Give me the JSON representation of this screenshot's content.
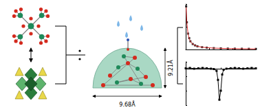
{
  "diagram": {
    "height_label": "9.21Å",
    "width_label": "9.68Å"
  },
  "chart_data": [
    {
      "type": "scatter",
      "x": [
        2,
        5,
        10,
        15,
        20,
        30,
        40,
        50,
        70,
        90,
        120,
        150,
        180,
        210,
        240,
        270,
        300
      ],
      "series": [
        {
          "type": "scatter",
          "marker": "square",
          "color": "#000000",
          "values": [
            0.95,
            0.6,
            0.35,
            0.25,
            0.18,
            0.12,
            0.09,
            0.07,
            0.05,
            0.04,
            0.03,
            0.025,
            0.02,
            0.018,
            0.016,
            0.014,
            0.012
          ]
        },
        {
          "type": "line",
          "line_style": "solid",
          "color": "#d62728",
          "values": [
            0.93,
            0.59,
            0.34,
            0.24,
            0.18,
            0.12,
            0.09,
            0.07,
            0.05,
            0.04,
            0.03,
            0.025,
            0.02,
            0.018,
            0.016,
            0.014,
            0.012
          ]
        }
      ],
      "xlim": [
        0,
        300
      ],
      "xticks": [
        0,
        100,
        200,
        300
      ],
      "ylim": [
        0,
        1
      ],
      "yticks": [
        0,
        0.5,
        1
      ],
      "tick_labels": false
    },
    {
      "type": "line",
      "x": [
        0,
        6,
        12,
        18,
        24,
        30,
        36,
        40,
        44,
        46,
        48,
        50,
        52,
        54,
        58,
        64,
        70,
        76,
        82,
        88,
        94,
        100
      ],
      "series": [
        {
          "type": "line",
          "marker": "square",
          "color": "#000000",
          "values": [
            0.02,
            0.03,
            0.01,
            0.02,
            0.03,
            0.02,
            0.01,
            0.0,
            -0.05,
            -0.3,
            -0.85,
            -0.6,
            -0.15,
            -0.02,
            0.01,
            0.02,
            0.03,
            0.02,
            0.01,
            0.02,
            0.03,
            0.02
          ]
        }
      ],
      "xlim": [
        0,
        100
      ],
      "xticks": [
        0,
        50,
        100
      ],
      "ylim": [
        -1,
        0.2
      ],
      "yticks": [
        -1,
        -0.6,
        -0.2,
        0.2
      ],
      "tick_labels": false
    }
  ]
}
